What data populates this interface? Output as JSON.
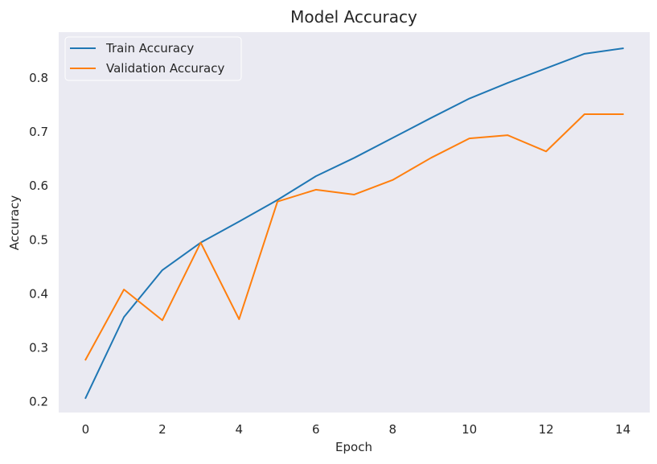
{
  "chart_data": {
    "type": "line",
    "title": "Model Accuracy",
    "xlabel": "Epoch",
    "ylabel": "Accuracy",
    "xlim": [
      -0.7,
      14.7
    ],
    "ylim": [
      0.18,
      0.885
    ],
    "xticks": [
      0,
      2,
      4,
      6,
      8,
      10,
      12,
      14
    ],
    "yticks": [
      0.2,
      0.3,
      0.4,
      0.5,
      0.6,
      0.7,
      0.8
    ],
    "grid": false,
    "background": "#eaeaf2",
    "legend_position": "top-left",
    "x": [
      0,
      1,
      2,
      3,
      4,
      5,
      6,
      7,
      8,
      9,
      10,
      11,
      12,
      13,
      14
    ],
    "series": [
      {
        "name": "Train Accuracy",
        "color": "#1f77b4",
        "values": [
          0.207,
          0.357,
          0.444,
          0.495,
          0.534,
          0.574,
          0.618,
          0.652,
          0.689,
          0.726,
          0.762,
          0.791,
          0.818,
          0.845,
          0.855
        ]
      },
      {
        "name": "Validation Accuracy",
        "color": "#ff7f0e",
        "values": [
          0.278,
          0.408,
          0.351,
          0.495,
          0.353,
          0.571,
          0.593,
          0.584,
          0.611,
          0.652,
          0.688,
          0.694,
          0.664,
          0.733,
          0.733
        ]
      }
    ]
  }
}
